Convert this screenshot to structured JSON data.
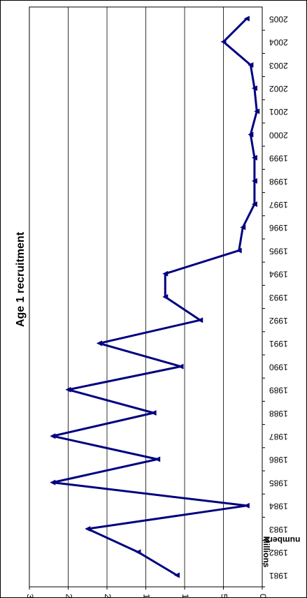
{
  "chart_data": {
    "type": "line",
    "title": "Age 1 recruitment",
    "y_label": [
      "numbers",
      "Millions"
    ],
    "categories": [
      "1981",
      "1982",
      "1983",
      "1984",
      "1985",
      "1986",
      "1987",
      "1988",
      "1989",
      "1990",
      "1991",
      "1992",
      "1993",
      "1994",
      "1995",
      "1996",
      "1997",
      "1998",
      "1999",
      "2000",
      "2001",
      "2002",
      "2003",
      "2004",
      "2005"
    ],
    "values": [
      11,
      16,
      22.5,
      2,
      27,
      13.5,
      27,
      14,
      25,
      10.5,
      21,
      8,
      12.5,
      12.5,
      3,
      2.5,
      1,
      1,
      1,
      1.5,
      0.7,
      1,
      1.5,
      5,
      2
    ],
    "color": "#000080",
    "ylim": [
      0,
      30
    ],
    "yticks": [
      0,
      5,
      10,
      15,
      20,
      25,
      30
    ],
    "grid": true
  }
}
